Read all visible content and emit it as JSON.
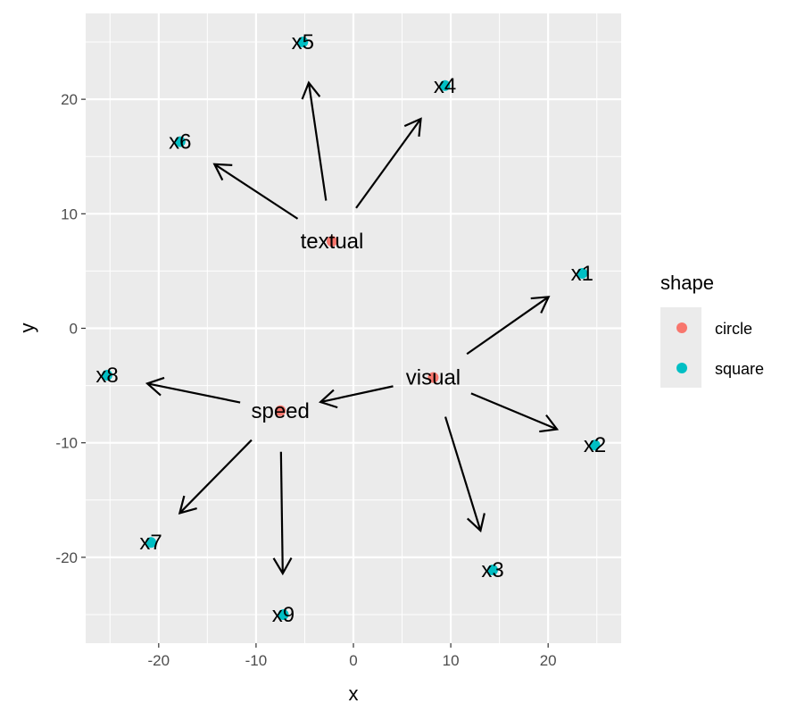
{
  "chart_data": {
    "type": "scatter",
    "xlabel": "x",
    "ylabel": "y",
    "xlim": [
      -27.5,
      27.5
    ],
    "ylim": [
      -27.5,
      27.5
    ],
    "x_ticks": [
      -20,
      -10,
      0,
      10,
      20
    ],
    "y_ticks": [
      -20,
      -10,
      0,
      10,
      20
    ],
    "x_tick_labels": [
      "-20",
      "-10",
      "0",
      "10",
      "20"
    ],
    "y_tick_labels": [
      "-20",
      "-10",
      "0",
      "10",
      "20"
    ],
    "grid": true,
    "legend": {
      "title": "shape",
      "position": "right",
      "entries": [
        {
          "label": "circle",
          "color": "#F8766D"
        },
        {
          "label": "square",
          "color": "#00BFC4"
        }
      ]
    },
    "nodes": [
      {
        "name": "textual",
        "x": -2.2,
        "y": 7.6,
        "shape": "circle"
      },
      {
        "name": "visual",
        "x": 8.2,
        "y": -4.3,
        "shape": "circle"
      },
      {
        "name": "speed",
        "x": -7.5,
        "y": -7.2,
        "shape": "circle"
      },
      {
        "name": "x1",
        "x": 23.5,
        "y": 4.8,
        "shape": "square"
      },
      {
        "name": "x2",
        "x": 24.8,
        "y": -10.2,
        "shape": "square"
      },
      {
        "name": "x3",
        "x": 14.3,
        "y": -21.1,
        "shape": "square"
      },
      {
        "name": "x4",
        "x": 9.4,
        "y": 21.2,
        "shape": "square"
      },
      {
        "name": "x5",
        "x": -5.2,
        "y": 25.0,
        "shape": "square"
      },
      {
        "name": "x6",
        "x": -17.8,
        "y": 16.3,
        "shape": "square"
      },
      {
        "name": "x7",
        "x": -20.8,
        "y": -18.7,
        "shape": "square"
      },
      {
        "name": "x8",
        "x": -25.3,
        "y": -4.1,
        "shape": "square"
      },
      {
        "name": "x9",
        "x": -7.2,
        "y": -25.0,
        "shape": "square"
      }
    ],
    "edges": [
      {
        "from": "textual",
        "to": "x4"
      },
      {
        "from": "textual",
        "to": "x5"
      },
      {
        "from": "textual",
        "to": "x6"
      },
      {
        "from": "visual",
        "to": "x1"
      },
      {
        "from": "visual",
        "to": "x2"
      },
      {
        "from": "visual",
        "to": "x3"
      },
      {
        "from": "visual",
        "to": "speed"
      },
      {
        "from": "speed",
        "to": "x7"
      },
      {
        "from": "speed",
        "to": "x8"
      },
      {
        "from": "speed",
        "to": "x9"
      }
    ]
  }
}
